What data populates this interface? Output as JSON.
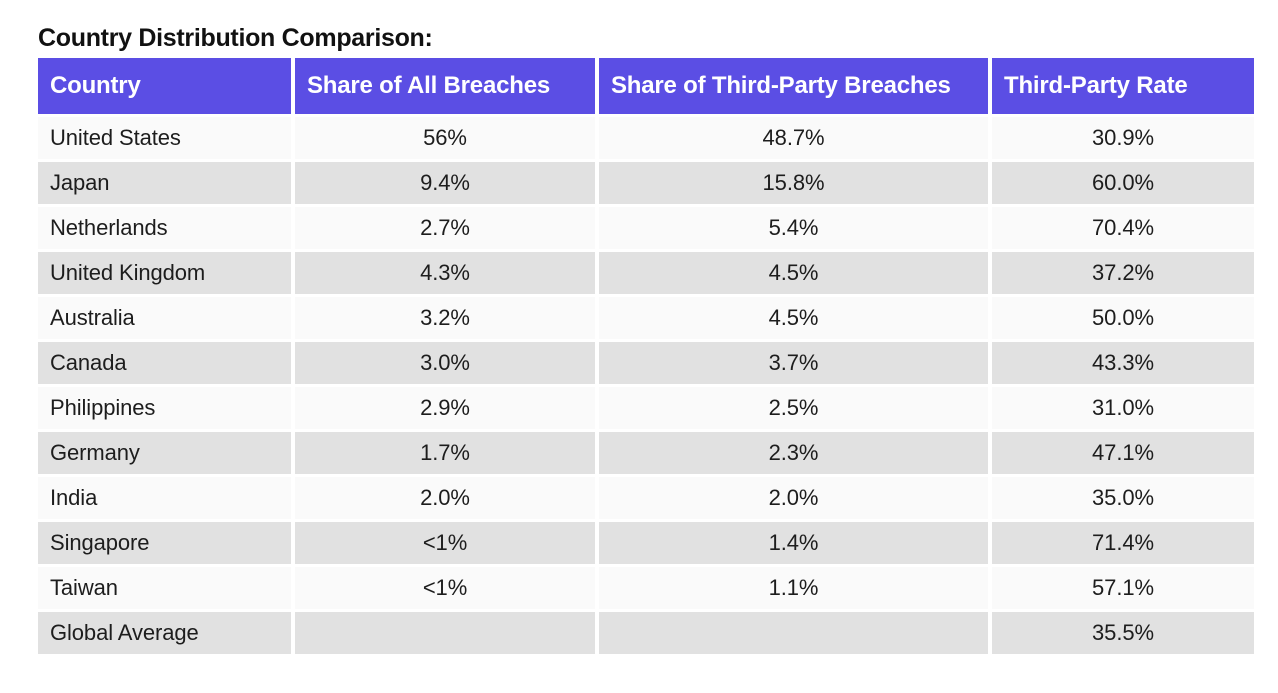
{
  "title": "Country Distribution Comparison:",
  "colors": {
    "header_bg": "#5B4EE4",
    "header_text": "#FFFFFF",
    "row_light_bg": "#FAFAFA",
    "row_dark_bg": "#E1E1E1",
    "body_text": "#1D1D1D",
    "title_text": "#111111",
    "page_bg": "#FFFFFF"
  },
  "chart_data": {
    "type": "table",
    "title": "Country Distribution Comparison:",
    "columns": [
      "Country",
      "Share of All Breaches",
      "Share of Third-Party Breaches",
      "Third-Party Rate"
    ],
    "rows": [
      [
        "United States",
        "56%",
        "48.7%",
        "30.9%"
      ],
      [
        "Japan",
        "9.4%",
        "15.8%",
        "60.0%"
      ],
      [
        "Netherlands",
        "2.7%",
        "5.4%",
        "70.4%"
      ],
      [
        "United Kingdom",
        "4.3%",
        "4.5%",
        "37.2%"
      ],
      [
        "Australia",
        "3.2%",
        "4.5%",
        "50.0%"
      ],
      [
        "Canada",
        "3.0%",
        "3.7%",
        "43.3%"
      ],
      [
        "Philippines",
        "2.9%",
        "2.5%",
        "31.0%"
      ],
      [
        "Germany",
        "1.7%",
        "2.3%",
        "47.1%"
      ],
      [
        "India",
        "2.0%",
        "2.0%",
        "35.0%"
      ],
      [
        "Singapore",
        "<1%",
        "1.4%",
        "71.4%"
      ],
      [
        "Taiwan",
        "<1%",
        "1.1%",
        "57.1%"
      ],
      [
        "Global Average",
        "",
        "",
        "35.5%"
      ]
    ],
    "layout": {
      "row_striping": "alternating light/dark starting light",
      "first_column_align": "left",
      "numeric_columns_align": "center",
      "header_align": "left"
    }
  }
}
